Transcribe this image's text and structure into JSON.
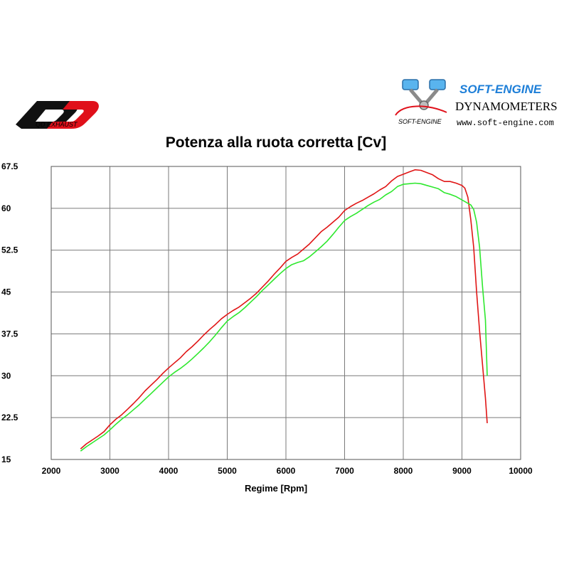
{
  "branding": {
    "name": "SOFT-ENGINE",
    "subtitle": "DYNAMOMETERS",
    "url": "www.soft-engine.com",
    "logo_text": "SOFT-ENGINE",
    "left_logo_text": "QD EXHAUST"
  },
  "colors": {
    "red_series": "#e01515",
    "green_series": "#2ee82e",
    "grid": "#7a7a7a",
    "brand_blue": "#1e7fd8",
    "brand_red": "#e0101a"
  },
  "chart_data": {
    "type": "line",
    "title": "Potenza alla ruota corretta [Cv]",
    "xlabel": "Regime [Rpm]",
    "ylabel": "",
    "xlim": [
      2000,
      10000
    ],
    "ylim": [
      15,
      67.5
    ],
    "x_ticks": [
      "2000",
      "3000",
      "4000",
      "5000",
      "6000",
      "7000",
      "8000",
      "9000",
      "10000"
    ],
    "y_ticks": [
      "67.5",
      "60",
      "52.5",
      "45",
      "37.5",
      "30",
      "22.5",
      "15"
    ],
    "grid": true,
    "legend": "none",
    "series": [
      {
        "color": "#e01515",
        "points": [
          [
            2500,
            16.9
          ],
          [
            2600,
            17.8
          ],
          [
            2700,
            18.5
          ],
          [
            2800,
            19.2
          ],
          [
            2900,
            20.0
          ],
          [
            3000,
            21.2
          ],
          [
            3100,
            22.2
          ],
          [
            3200,
            23.0
          ],
          [
            3300,
            24.0
          ],
          [
            3400,
            25.0
          ],
          [
            3500,
            26.1
          ],
          [
            3600,
            27.3
          ],
          [
            3700,
            28.3
          ],
          [
            3800,
            29.3
          ],
          [
            3900,
            30.4
          ],
          [
            4000,
            31.4
          ],
          [
            4100,
            32.3
          ],
          [
            4200,
            33.2
          ],
          [
            4300,
            34.3
          ],
          [
            4400,
            35.2
          ],
          [
            4500,
            36.2
          ],
          [
            4600,
            37.3
          ],
          [
            4700,
            38.3
          ],
          [
            4800,
            39.2
          ],
          [
            4900,
            40.2
          ],
          [
            5000,
            41.0
          ],
          [
            5100,
            41.7
          ],
          [
            5200,
            42.3
          ],
          [
            5300,
            43.1
          ],
          [
            5400,
            43.9
          ],
          [
            5500,
            44.8
          ],
          [
            5600,
            45.9
          ],
          [
            5700,
            47.0
          ],
          [
            5800,
            48.2
          ],
          [
            5900,
            49.3
          ],
          [
            6000,
            50.5
          ],
          [
            6100,
            51.2
          ],
          [
            6200,
            51.8
          ],
          [
            6300,
            52.7
          ],
          [
            6400,
            53.6
          ],
          [
            6500,
            54.7
          ],
          [
            6600,
            55.8
          ],
          [
            6700,
            56.6
          ],
          [
            6800,
            57.5
          ],
          [
            6900,
            58.4
          ],
          [
            7000,
            59.6
          ],
          [
            7100,
            60.3
          ],
          [
            7200,
            60.9
          ],
          [
            7300,
            61.4
          ],
          [
            7400,
            62.0
          ],
          [
            7500,
            62.6
          ],
          [
            7600,
            63.3
          ],
          [
            7700,
            63.9
          ],
          [
            7800,
            64.9
          ],
          [
            7900,
            65.7
          ],
          [
            8000,
            66.1
          ],
          [
            8100,
            66.5
          ],
          [
            8200,
            66.9
          ],
          [
            8300,
            66.8
          ],
          [
            8400,
            66.4
          ],
          [
            8500,
            66.0
          ],
          [
            8600,
            65.3
          ],
          [
            8700,
            64.8
          ],
          [
            8800,
            64.8
          ],
          [
            8900,
            64.5
          ],
          [
            9000,
            64.1
          ],
          [
            9050,
            63.6
          ],
          [
            9100,
            62.0
          ],
          [
            9150,
            58.0
          ],
          [
            9200,
            53.0
          ],
          [
            9250,
            45.0
          ],
          [
            9300,
            38.0
          ],
          [
            9350,
            32.0
          ],
          [
            9400,
            26.0
          ],
          [
            9430,
            21.5
          ]
        ]
      },
      {
        "color": "#2ee82e",
        "points": [
          [
            2500,
            16.5
          ],
          [
            2600,
            17.3
          ],
          [
            2700,
            18.0
          ],
          [
            2800,
            18.7
          ],
          [
            2900,
            19.4
          ],
          [
            3000,
            20.3
          ],
          [
            3100,
            21.3
          ],
          [
            3200,
            22.2
          ],
          [
            3300,
            23.0
          ],
          [
            3400,
            23.9
          ],
          [
            3500,
            24.8
          ],
          [
            3600,
            25.8
          ],
          [
            3700,
            26.8
          ],
          [
            3800,
            27.8
          ],
          [
            3900,
            28.8
          ],
          [
            4000,
            29.8
          ],
          [
            4100,
            30.6
          ],
          [
            4200,
            31.3
          ],
          [
            4300,
            32.1
          ],
          [
            4400,
            33.0
          ],
          [
            4500,
            34.0
          ],
          [
            4600,
            35.0
          ],
          [
            4700,
            36.1
          ],
          [
            4800,
            37.3
          ],
          [
            4900,
            38.6
          ],
          [
            5000,
            39.8
          ],
          [
            5100,
            40.6
          ],
          [
            5200,
            41.3
          ],
          [
            5300,
            42.2
          ],
          [
            5400,
            43.2
          ],
          [
            5500,
            44.2
          ],
          [
            5600,
            45.3
          ],
          [
            5700,
            46.3
          ],
          [
            5800,
            47.3
          ],
          [
            5900,
            48.3
          ],
          [
            6000,
            49.2
          ],
          [
            6100,
            49.9
          ],
          [
            6200,
            50.3
          ],
          [
            6300,
            50.6
          ],
          [
            6400,
            51.3
          ],
          [
            6500,
            52.2
          ],
          [
            6600,
            53.1
          ],
          [
            6700,
            54.1
          ],
          [
            6800,
            55.3
          ],
          [
            6900,
            56.6
          ],
          [
            7000,
            57.8
          ],
          [
            7100,
            58.5
          ],
          [
            7200,
            59.1
          ],
          [
            7300,
            59.8
          ],
          [
            7400,
            60.5
          ],
          [
            7500,
            61.1
          ],
          [
            7600,
            61.6
          ],
          [
            7700,
            62.4
          ],
          [
            7800,
            63.0
          ],
          [
            7900,
            63.9
          ],
          [
            8000,
            64.3
          ],
          [
            8100,
            64.4
          ],
          [
            8200,
            64.5
          ],
          [
            8300,
            64.4
          ],
          [
            8400,
            64.1
          ],
          [
            8500,
            63.8
          ],
          [
            8600,
            63.5
          ],
          [
            8700,
            62.8
          ],
          [
            8800,
            62.5
          ],
          [
            8900,
            62.1
          ],
          [
            9000,
            61.5
          ],
          [
            9100,
            60.9
          ],
          [
            9150,
            60.6
          ],
          [
            9200,
            59.8
          ],
          [
            9250,
            57.5
          ],
          [
            9300,
            53.0
          ],
          [
            9350,
            46.0
          ],
          [
            9400,
            40.0
          ],
          [
            9430,
            30.0
          ]
        ]
      }
    ]
  }
}
